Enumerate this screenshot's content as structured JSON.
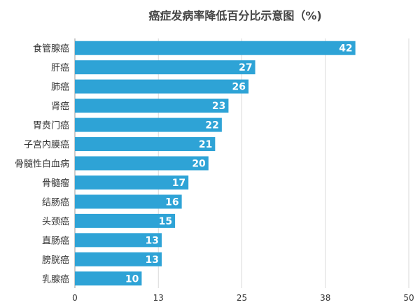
{
  "chart_data": {
    "type": "bar",
    "orientation": "horizontal",
    "title": "癌症发病率降低百分比示意图（%)",
    "xlabel": "",
    "ylabel": "",
    "categories": [
      "食管腺癌",
      "肝癌",
      "肺癌",
      "肾癌",
      "胃贲门癌",
      "子宫内膜癌",
      "骨髓性白血病",
      "骨髓瘤",
      "结肠癌",
      "头颈癌",
      "直肠癌",
      "膀胱癌",
      "乳腺癌"
    ],
    "values": [
      42,
      27,
      26,
      23,
      22,
      21,
      20,
      17,
      16,
      15,
      13,
      13,
      10
    ],
    "data_labels": [
      "42",
      "27",
      "26",
      "23",
      "22",
      "21",
      "20",
      "17",
      "16",
      "15",
      "13",
      "13",
      "10"
    ],
    "xlim": [
      0,
      50
    ],
    "ticks": [
      0,
      12.5,
      25,
      37.5,
      50
    ],
    "tick_labels": [
      "0",
      "13",
      "25",
      "38",
      "50"
    ],
    "grid": true,
    "legend": "none",
    "bar_color": "#2ea3d6"
  }
}
